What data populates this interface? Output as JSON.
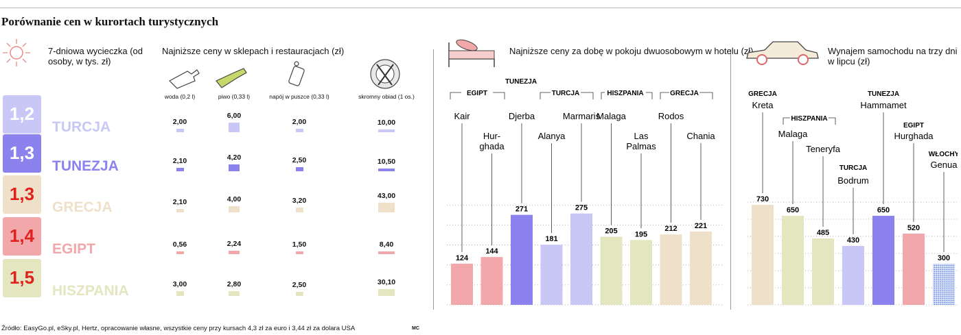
{
  "title": "Porównanie cen w kurortach turystycznych",
  "source": "Źródło: EasyGo.pl, eSky.pl, Hertz, opracowanie własne, wszystkie ceny przy kursach 4,3 zł za euro i 3,44 zł za dolara USA",
  "credit": "MC",
  "section1": {
    "trip_label": "7-dniowa wycieczka (od osoby, w tys. zł)",
    "prices_label": "Najniższe ceny w sklepach i restauracjach (zł)",
    "columns": [
      "woda (0,2 l)",
      "piwo (0,33 l)",
      "napój w puszce (0,33 l)",
      "skromny obiad (1 os.)"
    ]
  },
  "section2": {
    "header": "Najniższe ceny za dobę w pokoju dwuosobowym w hotelu (zł)"
  },
  "section3": {
    "header": "Wynajem samochodu na trzy dni w lipcu (zł)"
  },
  "chart_data": [
    {
      "type": "table",
      "rows": [
        {
          "country": "TURCJA",
          "trip_cost": "1,2",
          "values": [
            "2,00",
            "6,00",
            "2,00",
            "10,00"
          ],
          "color": "#c9c7f5",
          "trip_color": "#c9c7f5"
        },
        {
          "country": "TUNEZJA",
          "trip_cost": "1,3",
          "values": [
            "2,10",
            "4,20",
            "2,50",
            "10,50"
          ],
          "color": "#8b82ee",
          "trip_color": "#8b82ee"
        },
        {
          "country": "GRECJA",
          "trip_cost": "1,3",
          "values": [
            "2,10",
            "4,00",
            "3,20",
            "43,00"
          ],
          "color": "#efe1c9",
          "trip_color": "#efe1c9"
        },
        {
          "country": "EGIPT",
          "trip_cost": "1,4",
          "values": [
            "0,56",
            "2,24",
            "1,50",
            "8,40"
          ],
          "color": "#f2a7aa",
          "trip_color": "#f2a7aa"
        },
        {
          "country": "HISZPANIA",
          "trip_cost": "1,5",
          "values": [
            "3,00",
            "2,80",
            "2,50",
            "30,10"
          ],
          "color": "#e3e6bf",
          "trip_color": "#e3e6bf"
        }
      ]
    },
    {
      "type": "bar",
      "title": "Najniższe ceny za dobę w pokoju dwuosobowym w hotelu (zł)",
      "bars": [
        {
          "group": "EGIPT",
          "city": "Kair",
          "value": 124,
          "color": "#f2a7aa"
        },
        {
          "group": "EGIPT",
          "city": "Hur-ghada",
          "value": 144,
          "color": "#f2a7aa"
        },
        {
          "group": "TUNEZJA",
          "city": "Djerba",
          "value": 271,
          "color": "#8b82ee"
        },
        {
          "group": "TURCJA",
          "city": "Alanya",
          "value": 181,
          "color": "#c9c7f5"
        },
        {
          "group": "TURCJA",
          "city": "Marmaris",
          "value": 275,
          "color": "#c9c7f5"
        },
        {
          "group": "HISZPANIA",
          "city": "Malaga",
          "value": 205,
          "color": "#e3e6bf"
        },
        {
          "group": "HISZPANIA",
          "city": "Las Palmas",
          "value": 195,
          "color": "#e3e6bf"
        },
        {
          "group": "GRECJA",
          "city": "Rodos",
          "value": 212,
          "color": "#efe1c9"
        },
        {
          "group": "GRECJA",
          "city": "Chania",
          "value": 221,
          "color": "#efe1c9"
        }
      ]
    },
    {
      "type": "bar",
      "title": "Wynajem samochodu na trzy dni w lipcu (zł)",
      "bars": [
        {
          "group": "GRECJA",
          "city": "Kreta",
          "value": 730,
          "color": "#efe1c9"
        },
        {
          "group": "HISZPANIA",
          "city": "Malaga",
          "value": 650,
          "color": "#e3e6bf"
        },
        {
          "group": "HISZPANIA",
          "city": "Teneryfa",
          "value": 485,
          "color": "#e3e6bf"
        },
        {
          "group": "TURCJA",
          "city": "Bodrum",
          "value": 430,
          "color": "#c9c7f5"
        },
        {
          "group": "TUNEZJA",
          "city": "Hammamet",
          "value": 650,
          "color": "#8b82ee"
        },
        {
          "group": "EGIPT",
          "city": "Hurghada",
          "value": 520,
          "color": "#f2a7aa"
        },
        {
          "group": "WŁOCHY",
          "city": "Genua",
          "value": 300,
          "color": "#8fa9e6"
        }
      ]
    }
  ]
}
